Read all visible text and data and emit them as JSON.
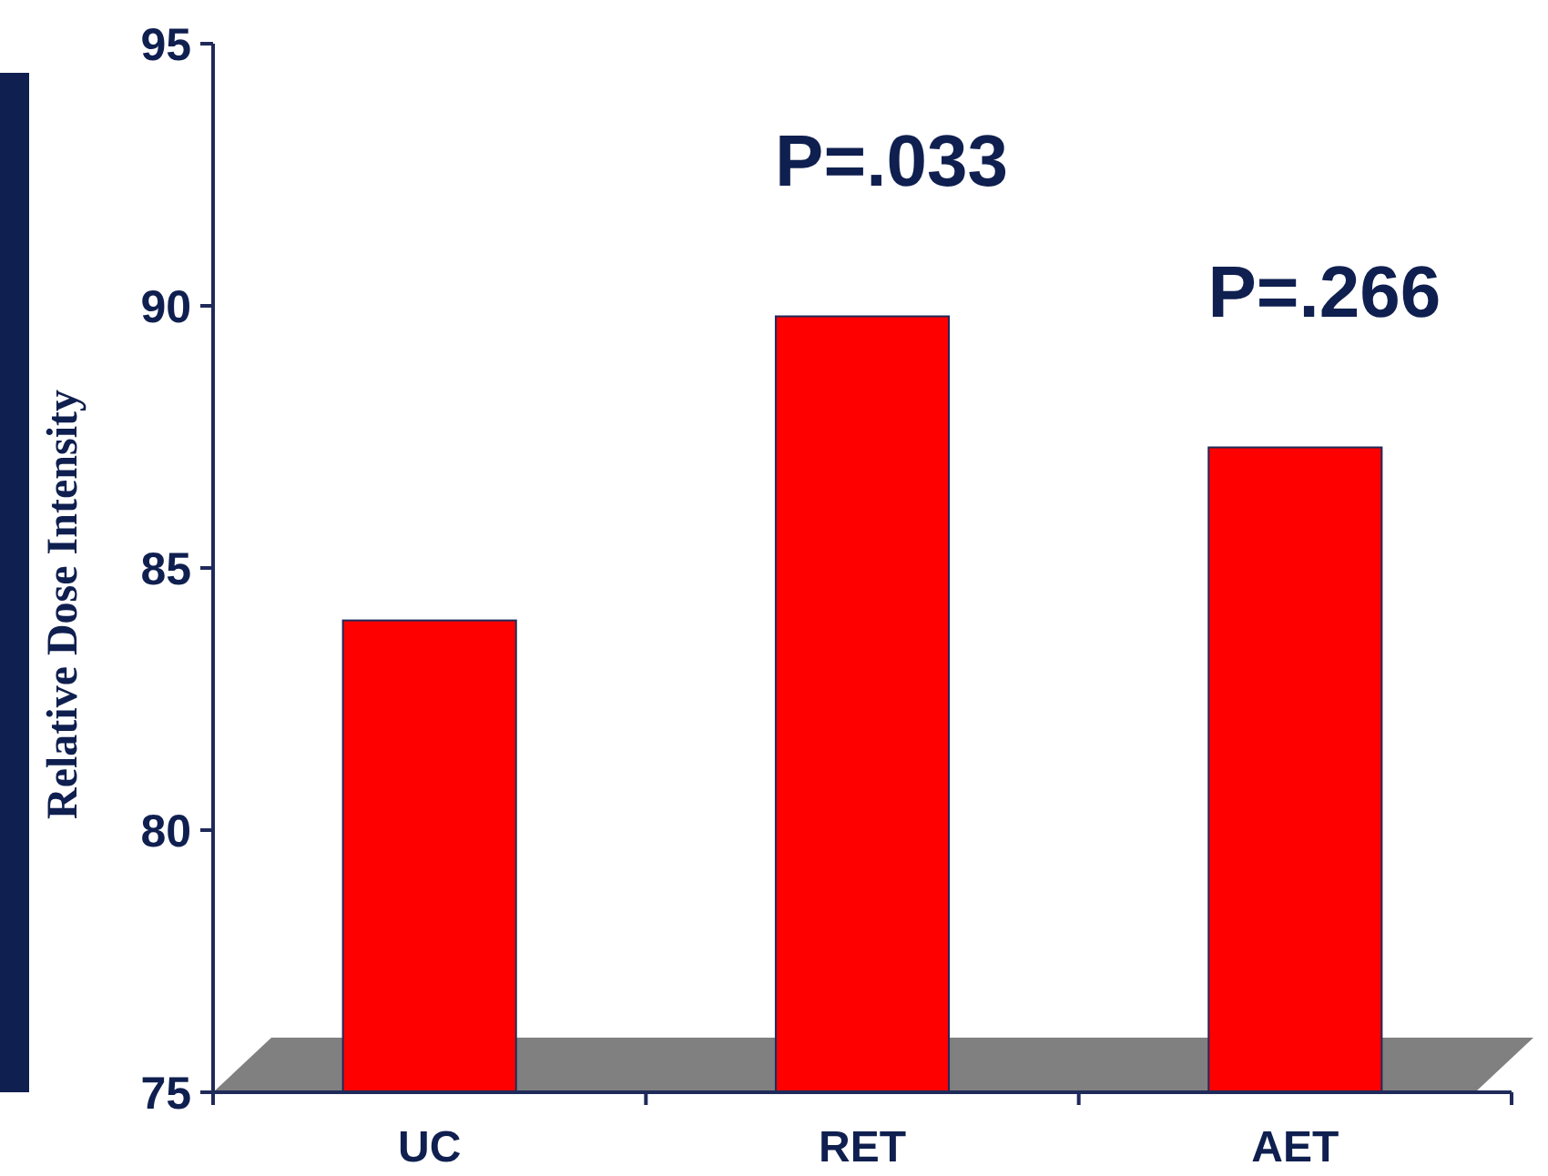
{
  "chart_data": {
    "type": "bar",
    "ylabel": "Relative Dose Intensity",
    "categories": [
      "UC",
      "RET",
      "AET"
    ],
    "values": [
      84,
      89.8,
      87.3
    ],
    "color": "#ff0000",
    "ylim": [
      75,
      95
    ],
    "yticks": [
      75,
      80,
      85,
      90,
      95
    ],
    "grid": false,
    "annotations": [
      "P=.033",
      "P=.266"
    ]
  }
}
